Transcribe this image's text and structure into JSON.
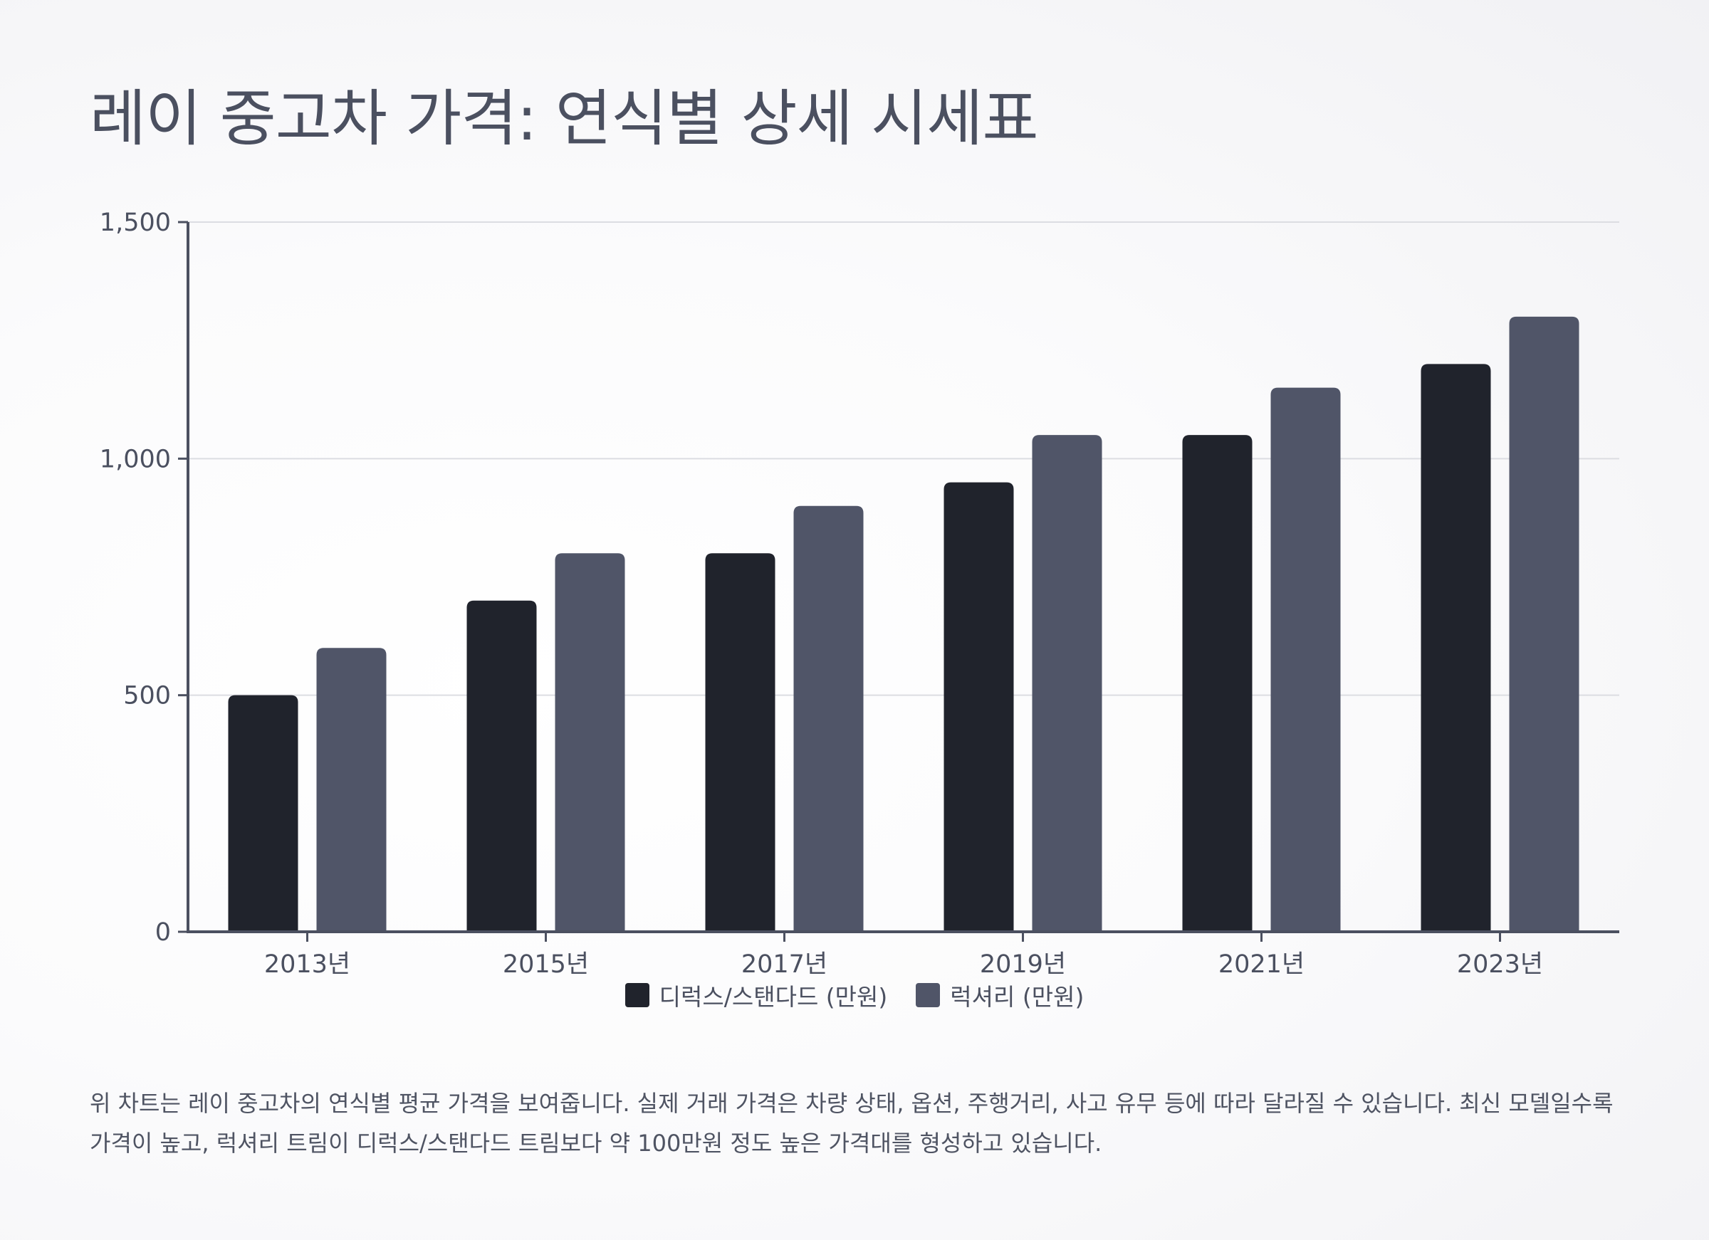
{
  "title": "레이 중고차 가격: 연식별 상세 시세표",
  "caption": "위 차트는 레이 중고차의 연식별 평균 가격을 보여줍니다. 실제 거래 가격은 차량 상태, 옵션, 주행거리, 사고 유무 등에 따라 달라질 수 있습니다. 최신 모델일수록 가격이 높고, 럭셔리 트림이 디럭스/스탠다드 트림보다 약 100만원 정도 높은 가격대를 형성하고 있습니다.",
  "chart_data": {
    "type": "bar",
    "title": "레이 중고차 가격: 연식별 상세 시세표",
    "xlabel": "",
    "ylabel": "",
    "categories": [
      "2013년",
      "2015년",
      "2017년",
      "2019년",
      "2021년",
      "2023년"
    ],
    "series": [
      {
        "name": "디럭스/스탠다드 (만원)",
        "color": "#20232c",
        "values": [
          500,
          700,
          800,
          950,
          1050,
          1200
        ]
      },
      {
        "name": "럭셔리 (만원)",
        "color": "#505568",
        "values": [
          600,
          800,
          900,
          1050,
          1150,
          1300
        ]
      }
    ],
    "ylim": [
      0,
      1500
    ],
    "yticks": [
      0,
      500,
      1000,
      1500
    ],
    "ytick_labels": [
      "0",
      "500",
      "1,000",
      "1,500"
    ],
    "grid": true,
    "legend_position": "bottom-center"
  }
}
